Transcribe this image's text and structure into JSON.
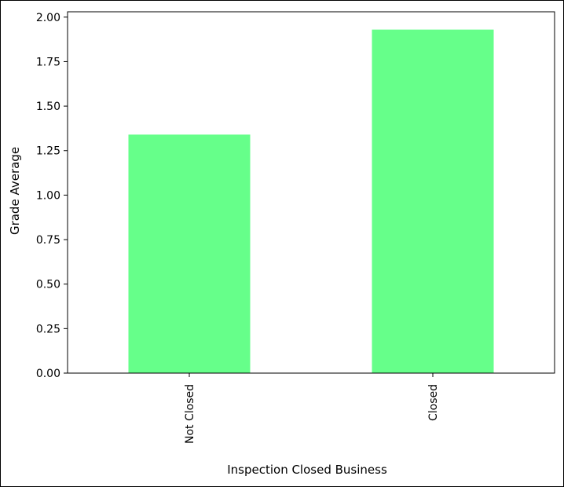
{
  "chart_data": {
    "type": "bar",
    "title": "",
    "xlabel": "Inspection Closed Business",
    "ylabel": "Grade Average",
    "categories": [
      "Not Closed",
      "Closed"
    ],
    "values": [
      1.34,
      1.93
    ],
    "ylim": [
      0,
      2.03
    ],
    "yticks": [
      "0.00",
      "0.25",
      "0.50",
      "0.75",
      "1.00",
      "1.25",
      "1.50",
      "1.75",
      "2.00"
    ],
    "bar_color": "#66ff8a",
    "grid": false,
    "legend": "none"
  }
}
